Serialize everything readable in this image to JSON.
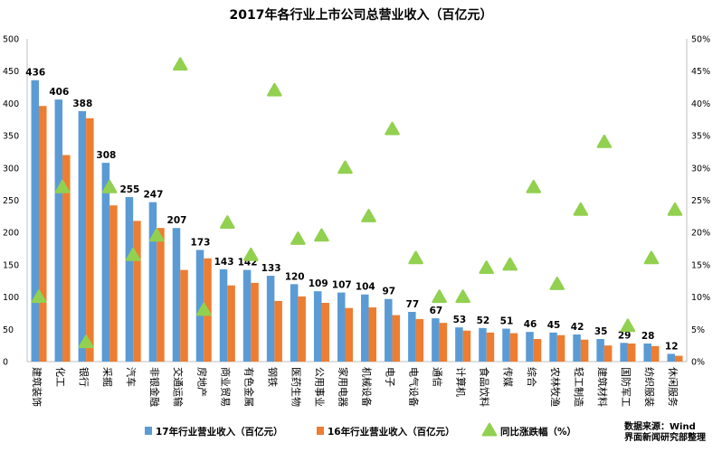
{
  "chart_data": {
    "type": "bar",
    "title": "2017年各行业上市公司总营业收入（百亿元）",
    "categories": [
      "建筑装饰",
      "化工",
      "银行",
      "采掘",
      "汽车",
      "非银金融",
      "交通运输",
      "房地产",
      "商业贸易",
      "有色金属",
      "钢铁",
      "医药生物",
      "公用事业",
      "家用电器",
      "机械设备",
      "电子",
      "电气设备",
      "通信",
      "计算机",
      "食品饮料",
      "传媒",
      "综合",
      "农林牧渔",
      "轻工制造",
      "建筑材料",
      "国防军工",
      "纺织服装",
      "休闲服务"
    ],
    "series": [
      {
        "name": "17年行业营业收入（百亿元）",
        "type": "bar",
        "axis": "left",
        "color": "#5b9bd5",
        "values": [
          436,
          406,
          388,
          308,
          255,
          247,
          207,
          173,
          143,
          142,
          133,
          120,
          109,
          107,
          104,
          97,
          77,
          67,
          53,
          52,
          51,
          46,
          45,
          42,
          35,
          29,
          28,
          12
        ]
      },
      {
        "name": "16年行业营业收入（百亿元）",
        "type": "bar",
        "axis": "left",
        "color": "#ed7d31",
        "values": [
          396,
          320,
          377,
          242,
          218,
          207,
          142,
          160,
          118,
          122,
          94,
          101,
          91,
          83,
          84,
          72,
          66,
          60,
          48,
          45,
          44,
          35,
          41,
          34,
          25,
          28,
          24,
          9
        ]
      },
      {
        "name": "同比涨跌幅（%）",
        "type": "scatter",
        "axis": "right",
        "color": "#92d050",
        "values": [
          10,
          27,
          3,
          27,
          16.5,
          19.5,
          46,
          8,
          21.5,
          16.5,
          42,
          19,
          19.5,
          30,
          22.5,
          36,
          16,
          10,
          10,
          14.5,
          15,
          27,
          12,
          23.5,
          34,
          5.5,
          16,
          23.5
        ]
      }
    ],
    "y_left": {
      "min": 0,
      "max": 500,
      "step": 50,
      "tick_labels": [
        "0",
        "50",
        "100",
        "150",
        "200",
        "250",
        "300",
        "350",
        "400",
        "450",
        "500"
      ]
    },
    "y_right": {
      "min": 0,
      "max": 50,
      "step": 5,
      "tick_labels": [
        "0%",
        "5%",
        "10%",
        "15%",
        "20%",
        "25%",
        "30%",
        "35%",
        "40%",
        "45%",
        "50%"
      ]
    },
    "data_labels": [
      "436",
      "406",
      "388",
      "308",
      "255",
      "247",
      "207",
      "173",
      "143",
      "142",
      "133",
      "120",
      "109",
      "107",
      "104",
      "97",
      "77",
      "67",
      "53",
      "52",
      "51",
      "46",
      "45",
      "42",
      "35",
      "29",
      "28",
      "12"
    ],
    "grid": false,
    "legend_position": "bottom"
  },
  "source_note": {
    "line1": "数据来源：Wind",
    "line2": "界面新闻研究部整理"
  }
}
